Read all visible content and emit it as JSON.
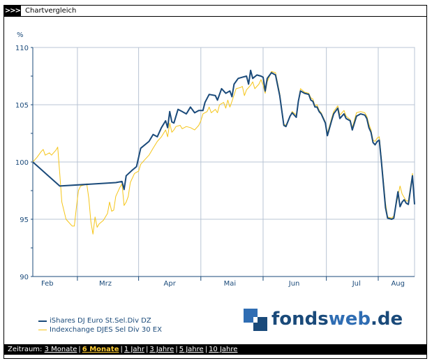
{
  "header": {
    "arrows": ">>>",
    "title": "Chartvergleich"
  },
  "chart_data": {
    "type": "line",
    "ylabel": "%",
    "ylim": [
      90,
      110
    ],
    "yticks": [
      90,
      95,
      100,
      105,
      110
    ],
    "xlim": [
      0,
      180
    ],
    "month_labels": [
      {
        "label": "Feb",
        "x": 7
      },
      {
        "label": "Mrz",
        "x": 35
      },
      {
        "label": "Apr",
        "x": 66
      },
      {
        "label": "Mai",
        "x": 95
      },
      {
        "label": "Jun",
        "x": 126
      },
      {
        "label": "Jul",
        "x": 156
      },
      {
        "label": "Aug",
        "x": 176
      }
    ],
    "grid": true,
    "series": [
      {
        "name": "iShares DJ Euro St.Sel.Div DZ",
        "color": "#1a4a7a",
        "points": [
          [
            0,
            100
          ],
          [
            13,
            97.9
          ],
          [
            40,
            98.2
          ],
          [
            43,
            98.3
          ],
          [
            44,
            97.6
          ],
          [
            45,
            98.8
          ],
          [
            48,
            99.3
          ],
          [
            50,
            99.6
          ],
          [
            52,
            101.2
          ],
          [
            56,
            101.8
          ],
          [
            58,
            102.4
          ],
          [
            60,
            102.2
          ],
          [
            62,
            103.0
          ],
          [
            64,
            103.6
          ],
          [
            65,
            103.0
          ],
          [
            66,
            104.4
          ],
          [
            67,
            103.5
          ],
          [
            68,
            103.4
          ],
          [
            70,
            104.6
          ],
          [
            72,
            104.4
          ],
          [
            74,
            104.2
          ],
          [
            75,
            104.5
          ],
          [
            76,
            104.8
          ],
          [
            78,
            104.3
          ],
          [
            80,
            104.5
          ],
          [
            82,
            104.5
          ],
          [
            83,
            105.2
          ],
          [
            85,
            105.9
          ],
          [
            88,
            105.8
          ],
          [
            89,
            105.4
          ],
          [
            91,
            106.4
          ],
          [
            93,
            106.0
          ],
          [
            95,
            106.2
          ],
          [
            96,
            105.7
          ],
          [
            97,
            106.8
          ],
          [
            99,
            107.3
          ],
          [
            101,
            107.4
          ],
          [
            103,
            107.5
          ],
          [
            104,
            106.8
          ],
          [
            105,
            108.0
          ],
          [
            106,
            107.3
          ],
          [
            108,
            107.6
          ],
          [
            110,
            107.5
          ],
          [
            111,
            107.4
          ],
          [
            112,
            106.2
          ],
          [
            113,
            107.3
          ],
          [
            115,
            107.8
          ],
          [
            117,
            107.6
          ],
          [
            119,
            105.8
          ],
          [
            121,
            103.2
          ],
          [
            122,
            103.1
          ],
          [
            124,
            104.0
          ],
          [
            125,
            104.3
          ],
          [
            127,
            103.9
          ],
          [
            128,
            105.3
          ],
          [
            129,
            106.2
          ],
          [
            131,
            106.0
          ],
          [
            133,
            105.9
          ],
          [
            134,
            105.4
          ],
          [
            135,
            105.3
          ],
          [
            136,
            104.8
          ],
          [
            137,
            104.8
          ],
          [
            138,
            104.4
          ],
          [
            139,
            104.2
          ],
          [
            141,
            103.4
          ],
          [
            142,
            102.3
          ],
          [
            144,
            103.6
          ],
          [
            145,
            104.2
          ],
          [
            147,
            104.7
          ],
          [
            148,
            103.8
          ],
          [
            150,
            104.2
          ],
          [
            151,
            103.8
          ],
          [
            153,
            103.6
          ],
          [
            154,
            102.8
          ],
          [
            156,
            104.0
          ],
          [
            158,
            104.2
          ],
          [
            160,
            104.1
          ],
          [
            161,
            103.8
          ],
          [
            162,
            103.0
          ],
          [
            163,
            102.6
          ],
          [
            164,
            101.7
          ],
          [
            165,
            101.5
          ],
          [
            166,
            101.8
          ],
          [
            167,
            101.9
          ],
          [
            168,
            100.1
          ],
          [
            170,
            96.0
          ],
          [
            171,
            95.1
          ],
          [
            173,
            95.0
          ],
          [
            174,
            95.1
          ],
          [
            176,
            97.4
          ],
          [
            177,
            96.1
          ],
          [
            178,
            96.5
          ],
          [
            179,
            96.7
          ],
          [
            180,
            96.4
          ],
          [
            181,
            96.3
          ],
          [
            183,
            98.8
          ],
          [
            184,
            96.3
          ]
        ]
      },
      {
        "name": "Indexchange DJES Sel Div 30 EX",
        "color": "#f5c518",
        "points": [
          [
            0,
            100
          ],
          [
            2,
            100.4
          ],
          [
            4,
            100.9
          ],
          [
            5,
            101.1
          ],
          [
            6,
            100.6
          ],
          [
            8,
            100.8
          ],
          [
            9,
            100.6
          ],
          [
            11,
            101.0
          ],
          [
            12,
            101.3
          ],
          [
            13,
            99.0
          ],
          [
            14,
            96.5
          ],
          [
            16,
            95.0
          ],
          [
            18,
            94.6
          ],
          [
            19,
            94.4
          ],
          [
            20,
            94.4
          ],
          [
            21,
            96.0
          ],
          [
            22,
            97.5
          ],
          [
            23,
            97.9
          ],
          [
            25,
            98.0
          ],
          [
            26,
            98.1
          ],
          [
            27,
            96.8
          ],
          [
            28,
            94.8
          ],
          [
            29,
            93.7
          ],
          [
            30,
            95.2
          ],
          [
            31,
            94.3
          ],
          [
            32,
            94.6
          ],
          [
            34,
            94.9
          ],
          [
            36,
            95.5
          ],
          [
            37,
            96.5
          ],
          [
            38,
            95.7
          ],
          [
            39,
            95.8
          ],
          [
            40,
            97.0
          ],
          [
            42,
            97.8
          ],
          [
            43,
            98.1
          ],
          [
            44,
            96.2
          ],
          [
            45,
            96.5
          ],
          [
            46,
            97.0
          ],
          [
            47,
            98.2
          ],
          [
            49,
            99.0
          ],
          [
            51,
            99.2
          ],
          [
            52,
            99.8
          ],
          [
            54,
            100.2
          ],
          [
            56,
            100.6
          ],
          [
            58,
            101.2
          ],
          [
            60,
            101.8
          ],
          [
            62,
            102.2
          ],
          [
            64,
            102.8
          ],
          [
            65,
            102.2
          ],
          [
            66,
            103.4
          ],
          [
            67,
            102.6
          ],
          [
            68,
            102.8
          ],
          [
            69,
            103.1
          ],
          [
            71,
            103.2
          ],
          [
            72,
            102.9
          ],
          [
            74,
            103.1
          ],
          [
            76,
            103.0
          ],
          [
            78,
            102.8
          ],
          [
            80,
            103.2
          ],
          [
            81,
            103.6
          ],
          [
            82,
            104.2
          ],
          [
            84,
            104.4
          ],
          [
            85,
            104.8
          ],
          [
            86,
            104.3
          ],
          [
            88,
            104.6
          ],
          [
            89,
            104.3
          ],
          [
            90,
            105.0
          ],
          [
            92,
            105.2
          ],
          [
            93,
            104.7
          ],
          [
            94,
            105.4
          ],
          [
            95,
            104.8
          ],
          [
            96,
            105.3
          ],
          [
            98,
            106.4
          ],
          [
            100,
            106.5
          ],
          [
            101,
            106.6
          ],
          [
            102,
            105.8
          ],
          [
            103,
            106.3
          ],
          [
            105,
            106.7
          ],
          [
            106,
            107.0
          ],
          [
            107,
            106.4
          ],
          [
            109,
            106.8
          ],
          [
            110,
            107.2
          ],
          [
            111,
            106.7
          ],
          [
            112,
            106.0
          ],
          [
            113,
            107.0
          ],
          [
            115,
            107.9
          ],
          [
            117,
            107.8
          ],
          [
            119,
            106.0
          ],
          [
            121,
            103.3
          ],
          [
            122,
            103.2
          ],
          [
            124,
            104.0
          ],
          [
            125,
            104.4
          ],
          [
            127,
            104.1
          ],
          [
            128,
            105.3
          ],
          [
            129,
            106.4
          ],
          [
            131,
            106.1
          ],
          [
            133,
            106.0
          ],
          [
            134,
            105.6
          ],
          [
            135,
            105.5
          ],
          [
            136,
            104.9
          ],
          [
            137,
            105.0
          ],
          [
            138,
            104.5
          ],
          [
            139,
            104.3
          ],
          [
            141,
            103.5
          ],
          [
            142,
            102.5
          ],
          [
            144,
            103.8
          ],
          [
            145,
            104.4
          ],
          [
            147,
            104.9
          ],
          [
            148,
            104.1
          ],
          [
            150,
            104.5
          ],
          [
            151,
            104.0
          ],
          [
            153,
            103.7
          ],
          [
            154,
            103.0
          ],
          [
            156,
            104.3
          ],
          [
            158,
            104.4
          ],
          [
            160,
            104.3
          ],
          [
            161,
            104.0
          ],
          [
            162,
            103.3
          ],
          [
            163,
            102.8
          ],
          [
            164,
            101.9
          ],
          [
            165,
            101.8
          ],
          [
            166,
            102.1
          ],
          [
            167,
            102.2
          ],
          [
            168,
            100.4
          ],
          [
            170,
            96.4
          ],
          [
            171,
            95.2
          ],
          [
            173,
            95.1
          ],
          [
            174,
            95.3
          ],
          [
            176,
            97.0
          ],
          [
            177,
            97.9
          ],
          [
            178,
            97.2
          ],
          [
            179,
            96.9
          ],
          [
            180,
            96.6
          ],
          [
            181,
            96.6
          ],
          [
            183,
            99.0
          ],
          [
            184,
            96.5
          ]
        ]
      }
    ]
  },
  "logo": {
    "part1": "fonds",
    "part2": "web",
    "part3": ".de",
    "dark_color": "#1a4a7a",
    "light_color": "#2f6db3"
  },
  "footer": {
    "label": "Zeitraum:",
    "links": [
      {
        "label": "3 Monate",
        "active": false
      },
      {
        "label": "6 Monate",
        "active": true
      },
      {
        "label": "1 Jahr",
        "active": false
      },
      {
        "label": "3 Jahre",
        "active": false
      },
      {
        "label": "5 Jahre",
        "active": false
      },
      {
        "label": "10 Jahre",
        "active": false
      }
    ]
  }
}
